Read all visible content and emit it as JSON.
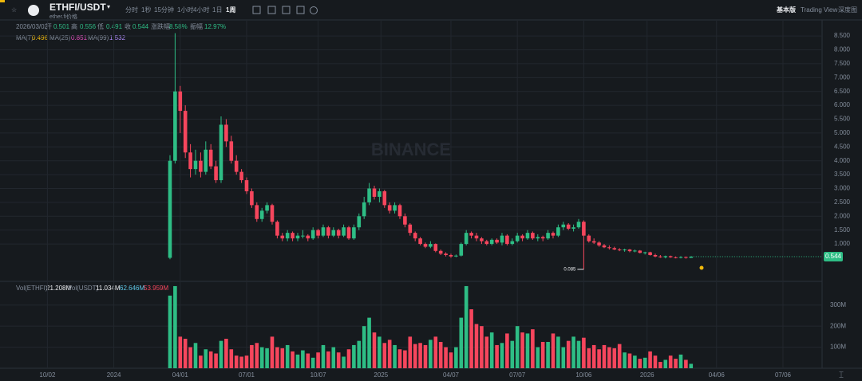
{
  "header": {
    "symbol": "ETHFI/USDT",
    "subtitle": "ether.fi价格",
    "timeframes": [
      "分时",
      "1秒",
      "15分钟",
      "1小时",
      "4小时",
      "1日",
      "1周"
    ],
    "views": [
      "基本版",
      "Trading View",
      "深度图"
    ],
    "info": [
      "2026/03/02",
      "开",
      0.501,
      "高",
      0.556,
      "低",
      0.491,
      "收",
      0.544,
      "涨跌幅",
      "8.58%",
      "振幅",
      "12.97%"
    ],
    "ma_legend": [
      "MA(7)",
      0.496,
      "MA(25)",
      0.851,
      "MA(99)",
      1.532
    ],
    "vol_legend": [
      "Vol(ETHFI)",
      "21.208M",
      "Vol(USDT)",
      "11.034M",
      "62.646M",
      "53.959M"
    ]
  },
  "chart_data": {
    "type": "candlestick",
    "watermark": "BINANCE",
    "up_color": "#2ebd85",
    "down_color": "#f6465d",
    "xlim": [
      -33.28,
      127.66
    ],
    "xticks": [
      {
        "value": -24,
        "label": "10/02"
      },
      {
        "value": -11,
        "label": "2024"
      },
      {
        "value": 2,
        "label": "04/01"
      },
      {
        "value": 15,
        "label": "07/01"
      },
      {
        "value": 29,
        "label": "10/07"
      },
      {
        "value": 41.3,
        "label": "2025"
      },
      {
        "value": 55,
        "label": "04/07"
      },
      {
        "value": 68,
        "label": "07/07"
      },
      {
        "value": 81,
        "label": "10/06"
      },
      {
        "value": 93.4,
        "label": "2026"
      },
      {
        "value": 107,
        "label": "04/06"
      },
      {
        "value": 120,
        "label": "07/06"
      }
    ],
    "ylim": [
      -0.32,
      9.05
    ],
    "yticks": [
      {
        "value": 1,
        "label": "1.000"
      },
      {
        "value": 1.5,
        "label": "1.500"
      },
      {
        "value": 2,
        "label": "2.000"
      },
      {
        "value": 2.5,
        "label": "2.500"
      },
      {
        "value": 3,
        "label": "3.000"
      },
      {
        "value": 3.5,
        "label": "3.500"
      },
      {
        "value": 4,
        "label": "4.000"
      },
      {
        "value": 4.5,
        "label": "4.500"
      },
      {
        "value": 5,
        "label": "5.000"
      },
      {
        "value": 5.5,
        "label": "5.500"
      },
      {
        "value": 6,
        "label": "6.000"
      },
      {
        "value": 6.5,
        "label": "6.500"
      },
      {
        "value": 7,
        "label": "7.000"
      },
      {
        "value": 7.5,
        "label": "7.500"
      },
      {
        "value": 8,
        "label": "8.000"
      },
      {
        "value": 8.5,
        "label": "8.500"
      }
    ],
    "last_price": 0.544,
    "low_annotation": 0.085,
    "low_index": 81,
    "ohlc": [
      [
        0.5,
        4.2,
        0.45,
        4.0
      ],
      [
        4.0,
        8.6,
        3.9,
        6.5
      ],
      [
        6.5,
        6.7,
        5.0,
        5.8
      ],
      [
        5.8,
        6.0,
        4.1,
        4.3
      ],
      [
        4.3,
        4.6,
        3.4,
        3.7
      ],
      [
        3.7,
        4.4,
        3.5,
        4.0
      ],
      [
        4.0,
        4.3,
        3.4,
        3.6
      ],
      [
        3.6,
        4.7,
        3.5,
        4.4
      ],
      [
        4.4,
        4.6,
        3.7,
        3.8
      ],
      [
        3.8,
        4.0,
        3.2,
        3.3
      ],
      [
        3.3,
        5.6,
        3.2,
        5.3
      ],
      [
        5.3,
        5.5,
        4.5,
        4.7
      ],
      [
        4.7,
        4.9,
        3.9,
        4.0
      ],
      [
        4.0,
        4.2,
        3.5,
        3.6
      ],
      [
        3.6,
        3.7,
        3.2,
        3.3
      ],
      [
        3.3,
        3.4,
        2.8,
        2.9
      ],
      [
        2.9,
        3.0,
        2.3,
        2.4
      ],
      [
        2.4,
        2.5,
        1.8,
        1.9
      ],
      [
        1.9,
        2.3,
        1.8,
        2.2
      ],
      [
        2.2,
        2.5,
        2.1,
        2.4
      ],
      [
        2.4,
        2.45,
        1.7,
        1.8
      ],
      [
        1.8,
        1.85,
        1.2,
        1.3
      ],
      [
        1.3,
        1.4,
        1.1,
        1.2
      ],
      [
        1.2,
        1.5,
        1.1,
        1.4
      ],
      [
        1.4,
        1.45,
        1.1,
        1.2
      ],
      [
        1.2,
        1.4,
        1.1,
        1.3
      ],
      [
        1.3,
        1.5,
        1.2,
        1.3
      ],
      [
        1.3,
        1.35,
        1.1,
        1.2
      ],
      [
        1.2,
        1.6,
        1.15,
        1.5
      ],
      [
        1.5,
        1.55,
        1.2,
        1.3
      ],
      [
        1.3,
        1.7,
        1.25,
        1.6
      ],
      [
        1.6,
        1.65,
        1.2,
        1.3
      ],
      [
        1.3,
        1.6,
        1.25,
        1.5
      ],
      [
        1.5,
        1.55,
        1.2,
        1.3
      ],
      [
        1.3,
        1.7,
        1.25,
        1.6
      ],
      [
        1.6,
        1.65,
        1.15,
        1.2
      ],
      [
        1.2,
        1.7,
        1.15,
        1.6
      ],
      [
        1.6,
        2.1,
        1.5,
        2.0
      ],
      [
        2.0,
        2.7,
        1.9,
        2.5
      ],
      [
        2.5,
        3.2,
        2.4,
        3.0
      ],
      [
        3.0,
        3.1,
        2.6,
        2.7
      ],
      [
        2.7,
        3.0,
        2.5,
        2.9
      ],
      [
        2.9,
        2.95,
        2.3,
        2.4
      ],
      [
        2.4,
        2.5,
        2.1,
        2.2
      ],
      [
        2.2,
        2.5,
        2.1,
        2.4
      ],
      [
        2.4,
        2.45,
        1.9,
        2.0
      ],
      [
        2.0,
        2.1,
        1.6,
        1.7
      ],
      [
        1.7,
        1.75,
        1.3,
        1.4
      ],
      [
        1.4,
        1.45,
        1.1,
        1.2
      ],
      [
        1.2,
        1.25,
        0.95,
        1.0
      ],
      [
        1.0,
        1.05,
        0.85,
        0.9
      ],
      [
        0.9,
        1.1,
        0.85,
        1.0
      ],
      [
        1.0,
        1.02,
        0.7,
        0.75
      ],
      [
        0.75,
        0.8,
        0.6,
        0.65
      ],
      [
        0.65,
        0.7,
        0.55,
        0.6
      ],
      [
        0.6,
        0.65,
        0.5,
        0.55
      ],
      [
        0.55,
        0.62,
        0.52,
        0.58
      ],
      [
        0.58,
        1.05,
        0.55,
        1.0
      ],
      [
        1.0,
        1.5,
        0.95,
        1.4
      ],
      [
        1.4,
        1.45,
        1.2,
        1.3
      ],
      [
        1.3,
        1.4,
        1.1,
        1.2
      ],
      [
        1.2,
        1.25,
        1.0,
        1.1
      ],
      [
        1.1,
        1.15,
        0.95,
        1.0
      ],
      [
        1.0,
        1.2,
        0.95,
        1.15
      ],
      [
        1.15,
        1.2,
        1.0,
        1.05
      ],
      [
        1.05,
        1.4,
        0.95,
        1.3
      ],
      [
        1.3,
        1.35,
        0.95,
        1.0
      ],
      [
        1.0,
        1.2,
        0.95,
        1.1
      ],
      [
        1.1,
        1.4,
        1.05,
        1.3
      ],
      [
        1.3,
        1.35,
        1.1,
        1.2
      ],
      [
        1.2,
        1.5,
        1.15,
        1.4
      ],
      [
        1.4,
        1.45,
        1.15,
        1.2
      ],
      [
        1.2,
        1.35,
        1.1,
        1.25
      ],
      [
        1.25,
        1.3,
        1.1,
        1.2
      ],
      [
        1.2,
        1.5,
        1.15,
        1.4
      ],
      [
        1.4,
        1.45,
        1.2,
        1.3
      ],
      [
        1.3,
        1.7,
        1.25,
        1.6
      ],
      [
        1.6,
        1.8,
        1.5,
        1.7
      ],
      [
        1.7,
        1.75,
        1.5,
        1.55
      ],
      [
        1.55,
        1.7,
        1.45,
        1.6
      ],
      [
        1.6,
        1.9,
        1.55,
        1.8
      ],
      [
        1.8,
        1.85,
        0.085,
        1.3
      ],
      [
        1.3,
        1.35,
        1.05,
        1.1
      ],
      [
        1.1,
        1.2,
        1.0,
        1.05
      ],
      [
        1.05,
        1.1,
        0.9,
        0.95
      ],
      [
        0.95,
        1.0,
        0.85,
        0.88
      ],
      [
        0.88,
        0.95,
        0.8,
        0.85
      ],
      [
        0.85,
        0.9,
        0.78,
        0.8
      ],
      [
        0.8,
        0.85,
        0.74,
        0.78
      ],
      [
        0.78,
        0.83,
        0.72,
        0.8
      ],
      [
        0.8,
        0.82,
        0.7,
        0.74
      ],
      [
        0.74,
        0.8,
        0.7,
        0.76
      ],
      [
        0.76,
        0.78,
        0.66,
        0.68
      ],
      [
        0.68,
        0.72,
        0.62,
        0.7
      ],
      [
        0.7,
        0.72,
        0.58,
        0.6
      ],
      [
        0.6,
        0.65,
        0.52,
        0.55
      ],
      [
        0.55,
        0.6,
        0.5,
        0.52
      ],
      [
        0.52,
        0.58,
        0.48,
        0.56
      ],
      [
        0.56,
        0.58,
        0.5,
        0.52
      ],
      [
        0.52,
        0.55,
        0.48,
        0.5
      ],
      [
        0.5,
        0.56,
        0.48,
        0.53
      ],
      [
        0.53,
        0.55,
        0.47,
        0.501
      ],
      [
        0.501,
        0.556,
        0.491,
        0.544
      ]
    ],
    "volume": {
      "ylim": [
        0,
        405
      ],
      "yticks": [
        {
          "value": 100,
          "label": "100M"
        },
        {
          "value": 200,
          "label": "200M"
        },
        {
          "value": 300,
          "label": "300M"
        }
      ],
      "values": [
        345,
        390,
        150,
        140,
        100,
        120,
        60,
        90,
        80,
        70,
        130,
        140,
        90,
        60,
        55,
        60,
        110,
        120,
        100,
        95,
        150,
        100,
        95,
        110,
        80,
        65,
        85,
        70,
        50,
        75,
        110,
        80,
        100,
        75,
        55,
        90,
        110,
        130,
        200,
        240,
        170,
        150,
        120,
        135,
        110,
        90,
        85,
        150,
        115,
        120,
        110,
        135,
        150,
        125,
        100,
        75,
        100,
        240,
        390,
        280,
        210,
        200,
        150,
        170,
        110,
        120,
        165,
        130,
        200,
        170,
        165,
        185,
        100,
        125,
        125,
        165,
        150,
        100,
        130,
        150,
        130,
        145,
        95,
        110,
        90,
        110,
        100,
        95,
        115,
        75,
        70,
        60,
        45,
        50,
        80,
        60,
        30,
        40,
        60,
        45,
        65,
        40,
        21
      ]
    }
  }
}
